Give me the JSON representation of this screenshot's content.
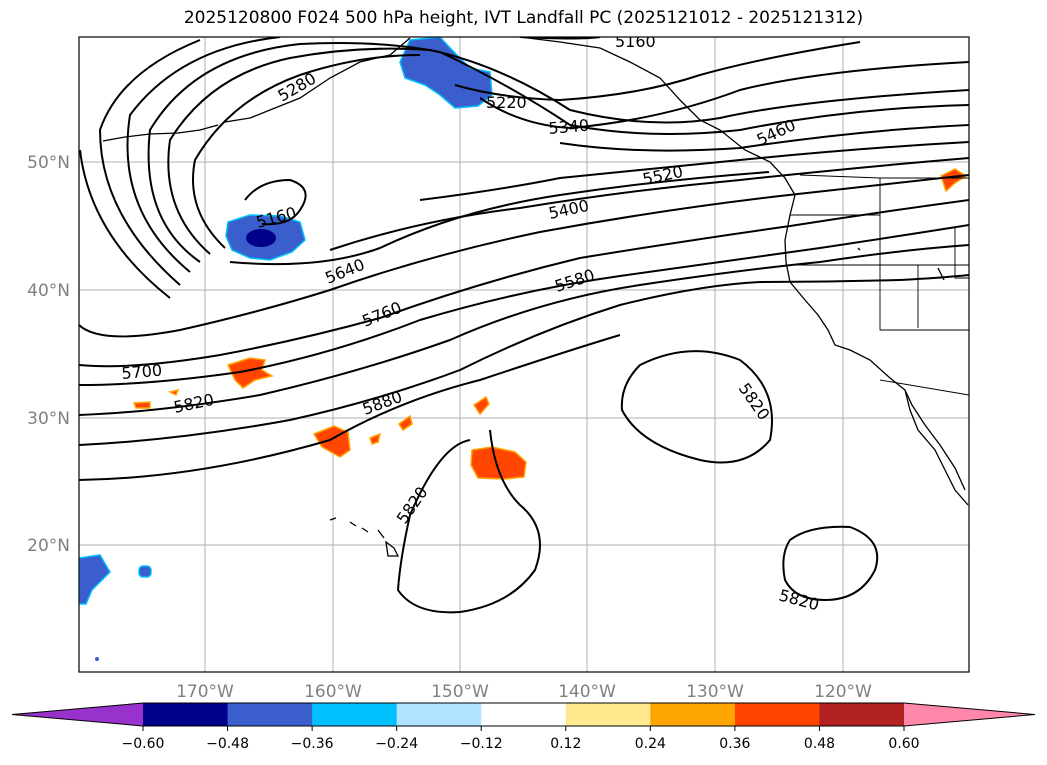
{
  "title": "2025120800 F024 500 hPa height, IVT Landfall PC (2025121012 - 2025121312)",
  "map": {
    "lat_labels": [
      "50°N",
      "40°N",
      "30°N",
      "20°N"
    ],
    "lon_labels": [
      "170°W",
      "160°W",
      "150°W",
      "140°W",
      "130°W",
      "120°W"
    ],
    "contour_labels": [
      "5160",
      "5280",
      "5160",
      "5220",
      "5340",
      "5460",
      "5520",
      "5400",
      "5640",
      "5760",
      "5580",
      "5700",
      "5820",
      "5880",
      "5820",
      "5820"
    ]
  },
  "colorbar": {
    "ticks": [
      "−0.60",
      "−0.48",
      "−0.36",
      "−0.24",
      "−0.12",
      "0.12",
      "0.24",
      "0.36",
      "0.48",
      "0.60"
    ],
    "colors": [
      "#9932cc",
      "#00008b",
      "#3a5fcd",
      "#00bfff",
      "#afe3ff",
      "#ffffff",
      "#ffea8f",
      "#ffa500",
      "#ff4500",
      "#b22222",
      "#ff88aa"
    ]
  }
}
